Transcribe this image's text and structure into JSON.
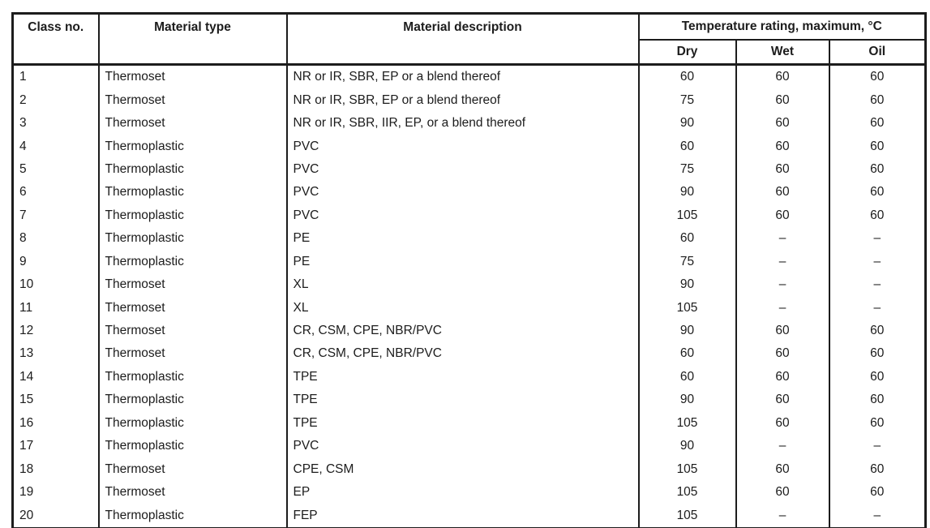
{
  "table": {
    "headers": {
      "class_no": "Class no.",
      "material_type": "Material type",
      "material_description": "Material description",
      "temperature_group": "Temperature rating, maximum, °C",
      "dry": "Dry",
      "wet": "Wet",
      "oil": "Oil"
    },
    "rows": [
      {
        "class_no": "1",
        "type": "Thermoset",
        "description": "NR or IR, SBR, EP or a blend thereof",
        "dry": "60",
        "wet": "60",
        "oil": "60"
      },
      {
        "class_no": "2",
        "type": "Thermoset",
        "description": "NR or IR, SBR, EP or a blend thereof",
        "dry": "75",
        "wet": "60",
        "oil": "60"
      },
      {
        "class_no": "3",
        "type": "Thermoset",
        "description": "NR or IR, SBR, IIR, EP, or a blend thereof",
        "dry": "90",
        "wet": "60",
        "oil": "60"
      },
      {
        "class_no": "4",
        "type": "Thermoplastic",
        "description": "PVC",
        "dry": "60",
        "wet": "60",
        "oil": "60"
      },
      {
        "class_no": "5",
        "type": "Thermoplastic",
        "description": "PVC",
        "dry": "75",
        "wet": "60",
        "oil": "60"
      },
      {
        "class_no": "6",
        "type": "Thermoplastic",
        "description": "PVC",
        "dry": "90",
        "wet": "60",
        "oil": "60"
      },
      {
        "class_no": "7",
        "type": "Thermoplastic",
        "description": "PVC",
        "dry": "105",
        "wet": "60",
        "oil": "60"
      },
      {
        "class_no": "8",
        "type": "Thermoplastic",
        "description": "PE",
        "dry": "60",
        "wet": "–",
        "oil": "–"
      },
      {
        "class_no": "9",
        "type": "Thermoplastic",
        "description": "PE",
        "dry": "75",
        "wet": "–",
        "oil": "–"
      },
      {
        "class_no": "10",
        "type": "Thermoset",
        "description": "XL",
        "dry": "90",
        "wet": "–",
        "oil": "–"
      },
      {
        "class_no": "11",
        "type": "Thermoset",
        "description": "XL",
        "dry": "105",
        "wet": "–",
        "oil": "–"
      },
      {
        "class_no": "12",
        "type": "Thermoset",
        "description": "CR, CSM, CPE, NBR/PVC",
        "dry": "90",
        "wet": "60",
        "oil": "60"
      },
      {
        "class_no": "13",
        "type": "Thermoset",
        "description": "CR, CSM, CPE, NBR/PVC",
        "dry": "60",
        "wet": "60",
        "oil": "60"
      },
      {
        "class_no": "14",
        "type": "Thermoplastic",
        "description": "TPE",
        "dry": "60",
        "wet": "60",
        "oil": "60"
      },
      {
        "class_no": "15",
        "type": "Thermoplastic",
        "description": "TPE",
        "dry": "90",
        "wet": "60",
        "oil": "60"
      },
      {
        "class_no": "16",
        "type": "Thermoplastic",
        "description": "TPE",
        "dry": "105",
        "wet": "60",
        "oil": "60"
      },
      {
        "class_no": "17",
        "type": "Thermoplastic",
        "description": "PVC",
        "dry": "90",
        "wet": "–",
        "oil": "–"
      },
      {
        "class_no": "18",
        "type": "Thermoset",
        "description": "CPE, CSM",
        "dry": "105",
        "wet": "60",
        "oil": "60"
      },
      {
        "class_no": "19",
        "type": "Thermoset",
        "description": "EP",
        "dry": "105",
        "wet": "60",
        "oil": "60"
      },
      {
        "class_no": "20",
        "type": "Thermoplastic",
        "description": "FEP",
        "dry": "105",
        "wet": "–",
        "oil": "–"
      }
    ]
  },
  "colors": {
    "border": "#1c1c1c",
    "text": "#1c1c1c",
    "background": "#ffffff"
  }
}
